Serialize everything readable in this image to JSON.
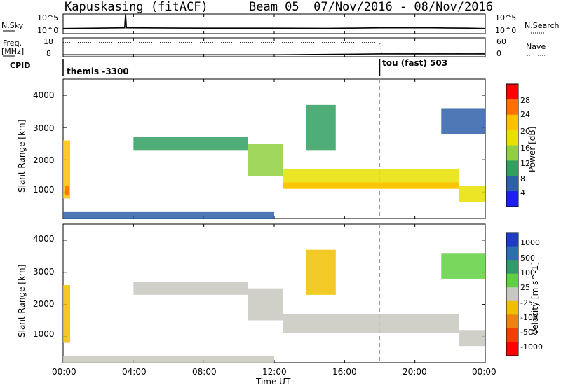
{
  "header": {
    "station": "Kapuskasing (fitACF)",
    "beam_dates": "Beam 05  07/Nov/2016 - 08/Nov/2016"
  },
  "nsky_panel": {
    "left_label": "N.Sky",
    "left_ticks": [
      "10^5",
      "10^0"
    ],
    "right_ticks": [
      "10^5",
      "10^0"
    ],
    "right_label": "N.Search",
    "right_line_style": "dotted"
  },
  "freq_panel": {
    "left_label_1": "Freq.",
    "left_label_2": "[MHz]",
    "left_ticks": [
      "18",
      "8"
    ],
    "right_ticks": [
      "60",
      "0"
    ],
    "right_label": "Nave",
    "right_line_style": "dotted"
  },
  "cpid_panel": {
    "label": "CPID",
    "modes": [
      {
        "name": "themis -3300",
        "start_hour": 0
      },
      {
        "name": "tou (fast) 503",
        "start_hour": 18
      }
    ]
  },
  "power_panel": {
    "ylabel": "Slant Range [km]",
    "yticks": [
      "4000",
      "3000",
      "2000",
      "1000"
    ],
    "colorbar_label": "Power [dB]",
    "colorbar_ticks": [
      "28",
      "24",
      "20",
      "16",
      "12",
      "8",
      "4"
    ],
    "colorbar_colors": [
      "#ff0000",
      "#ff7000",
      "#ffc000",
      "#e8e000",
      "#90d040",
      "#30a060",
      "#2f5fa8",
      "#1e1ef0"
    ]
  },
  "velocity_panel": {
    "ylabel": "Slant Range [km]",
    "yticks": [
      "4000",
      "3000",
      "2000",
      "1000"
    ],
    "colorbar_label": "Velocity [m s^-1]",
    "colorbar_ticks": [
      "1000",
      "500",
      "100",
      "25",
      "-25",
      "-100",
      "-500",
      "-1000"
    ],
    "colorbar_colors": [
      "#1e3cc8",
      "#2c6eb0",
      "#2f9a6a",
      "#60d040",
      "#c8c8c0",
      "#f0c000",
      "#f08010",
      "#f04000",
      "#ff0000"
    ]
  },
  "xaxis": {
    "label": "Time UT",
    "ticks": [
      "00:00",
      "04:00",
      "08:00",
      "12:00",
      "16:00",
      "20:00",
      "00:00"
    ]
  },
  "chart_data": [
    {
      "type": "line",
      "name": "N.Sky",
      "x_range_hours": [
        0,
        24
      ],
      "y_scale": "log",
      "ylim": [
        1,
        100000
      ],
      "points": [
        [
          0,
          20
        ],
        [
          3.5,
          30
        ],
        [
          3.55,
          100000
        ],
        [
          3.6,
          30
        ],
        [
          8,
          25
        ],
        [
          12,
          25
        ],
        [
          15,
          22
        ],
        [
          18,
          30
        ],
        [
          21,
          30
        ],
        [
          23,
          25
        ],
        [
          24,
          20
        ]
      ]
    },
    {
      "type": "line",
      "name": "Freq.",
      "x_range_hours": [
        0,
        24
      ],
      "ylim": [
        8,
        18
      ],
      "points": [
        [
          0,
          9
        ],
        [
          12,
          9
        ],
        [
          18,
          9.5
        ],
        [
          24,
          9.5
        ]
      ]
    },
    {
      "type": "line",
      "name": "Nave",
      "x_range_hours": [
        0,
        24
      ],
      "ylim": [
        0,
        60
      ],
      "points": [
        [
          0,
          45
        ],
        [
          18,
          45
        ],
        [
          18.1,
          10
        ],
        [
          24,
          10
        ]
      ]
    },
    {
      "type": "heatmap",
      "name": "Power",
      "x_range_hours": [
        0,
        24
      ],
      "ylim": [
        180,
        4500
      ],
      "unit": "dB",
      "clim": [
        0,
        32
      ],
      "regions": [
        {
          "t0": 0,
          "t1": 0.4,
          "r0": 800,
          "r1": 2600,
          "value": 22
        },
        {
          "t0": 0.1,
          "t1": 0.35,
          "r0": 900,
          "r1": 1200,
          "value": 28
        },
        {
          "t0": 4,
          "t1": 10.5,
          "r0": 2300,
          "r1": 2700,
          "value": 10
        },
        {
          "t0": 10.5,
          "t1": 12.5,
          "r0": 1500,
          "r1": 2500,
          "value": 14
        },
        {
          "t0": 12.5,
          "t1": 22.5,
          "r0": 1100,
          "r1": 1700,
          "value": 18
        },
        {
          "t0": 12.5,
          "t1": 22.5,
          "r0": 1100,
          "r1": 1300,
          "value": 24
        },
        {
          "t0": 13.8,
          "t1": 15.5,
          "r0": 2300,
          "r1": 3700,
          "value": 12
        },
        {
          "t0": 21.5,
          "t1": 24,
          "r0": 2800,
          "r1": 3600,
          "value": 8
        },
        {
          "t0": 22.5,
          "t1": 24,
          "r0": 700,
          "r1": 1200,
          "value": 20
        },
        {
          "t0": 0,
          "t1": 12,
          "r0": 180,
          "r1": 400,
          "value": 6
        }
      ]
    },
    {
      "type": "heatmap",
      "name": "Velocity",
      "x_range_hours": [
        0,
        24
      ],
      "ylim": [
        180,
        4500
      ],
      "unit": "m s^-1",
      "clim": [
        -1000,
        1000
      ],
      "regions": [
        {
          "t0": 0,
          "t1": 0.4,
          "r0": 800,
          "r1": 2600,
          "value": -300
        },
        {
          "t0": 4,
          "t1": 10.5,
          "r0": 2300,
          "r1": 2700,
          "value": 0
        },
        {
          "t0": 10.5,
          "t1": 12.5,
          "r0": 1500,
          "r1": 2500,
          "value": 0
        },
        {
          "t0": 12.5,
          "t1": 22.5,
          "r0": 1100,
          "r1": 1700,
          "value": 0
        },
        {
          "t0": 13.8,
          "t1": 15.5,
          "r0": 2300,
          "r1": 3700,
          "value": -150
        },
        {
          "t0": 21.5,
          "t1": 24,
          "r0": 2800,
          "r1": 3600,
          "value": 200
        },
        {
          "t0": 22.5,
          "t1": 24,
          "r0": 700,
          "r1": 1200,
          "value": 60
        },
        {
          "t0": 0,
          "t1": 12,
          "r0": 180,
          "r1": 400,
          "value": -80
        }
      ]
    }
  ]
}
